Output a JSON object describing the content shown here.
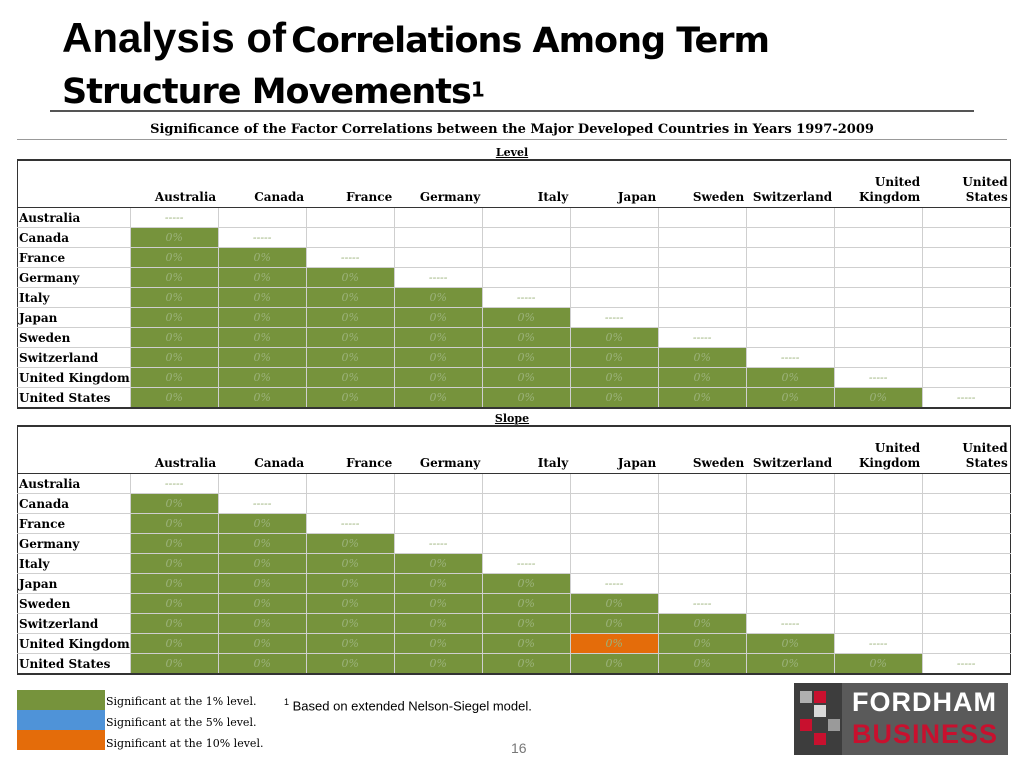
{
  "title": {
    "part1": "Analysis of",
    "part2": "Correlations Among Term",
    "part3": "Structure Movements",
    "footnote_mark": "1"
  },
  "subtitle": "Significance of the Factor Correlations between the Major Developed Countries in Years 1997-2009",
  "columns": [
    "Australia",
    "Canada",
    "France",
    "Germany",
    "Italy",
    "Japan",
    "Sweden",
    "Switzerland",
    "United Kingdom",
    "United States"
  ],
  "rows": [
    "Australia",
    "Canada",
    "France",
    "Germany",
    "Italy",
    "Japan",
    "Sweden",
    "Switzerland",
    "United Kingdom",
    "United States"
  ],
  "cell_value": "0%",
  "diagonal_value": "-----",
  "sections": [
    {
      "label": "Level",
      "significance": [
        [
          "d",
          "",
          "",
          "",
          "",
          "",
          "",
          "",
          "",
          ""
        ],
        [
          "g",
          "d",
          "",
          "",
          "",
          "",
          "",
          "",
          "",
          ""
        ],
        [
          "g",
          "g",
          "d",
          "",
          "",
          "",
          "",
          "",
          "",
          ""
        ],
        [
          "g",
          "g",
          "g",
          "d",
          "",
          "",
          "",
          "",
          "",
          ""
        ],
        [
          "g",
          "g",
          "g",
          "g",
          "d",
          "",
          "",
          "",
          "",
          ""
        ],
        [
          "g",
          "g",
          "g",
          "g",
          "g",
          "d",
          "",
          "",
          "",
          ""
        ],
        [
          "g",
          "g",
          "g",
          "g",
          "g",
          "g",
          "d",
          "",
          "",
          ""
        ],
        [
          "g",
          "g",
          "g",
          "g",
          "g",
          "g",
          "g",
          "d",
          "",
          ""
        ],
        [
          "g",
          "g",
          "g",
          "g",
          "g",
          "g",
          "g",
          "g",
          "d",
          ""
        ],
        [
          "g",
          "g",
          "g",
          "g",
          "g",
          "g",
          "g",
          "g",
          "g",
          "d"
        ]
      ]
    },
    {
      "label": "Slope",
      "significance": [
        [
          "d",
          "",
          "",
          "",
          "",
          "",
          "",
          "",
          "",
          ""
        ],
        [
          "g",
          "d",
          "",
          "",
          "",
          "",
          "",
          "",
          "",
          ""
        ],
        [
          "g",
          "g",
          "d",
          "",
          "",
          "",
          "",
          "",
          "",
          ""
        ],
        [
          "g",
          "g",
          "g",
          "d",
          "",
          "",
          "",
          "",
          "",
          ""
        ],
        [
          "g",
          "g",
          "g",
          "g",
          "d",
          "",
          "",
          "",
          "",
          ""
        ],
        [
          "g",
          "g",
          "g",
          "g",
          "g",
          "d",
          "",
          "",
          "",
          ""
        ],
        [
          "g",
          "g",
          "g",
          "g",
          "g",
          "g",
          "d",
          "",
          "",
          ""
        ],
        [
          "g",
          "g",
          "g",
          "g",
          "g",
          "g",
          "g",
          "d",
          "",
          ""
        ],
        [
          "g",
          "g",
          "g",
          "g",
          "g",
          "o",
          "g",
          "g",
          "d",
          ""
        ],
        [
          "g",
          "g",
          "g",
          "g",
          "g",
          "g",
          "g",
          "g",
          "g",
          "d"
        ]
      ]
    }
  ],
  "legend": [
    {
      "label": "Significant at the 1% level.",
      "color": "#76933c"
    },
    {
      "label": "Significant at the 5% level.",
      "color": "#4f93d8"
    },
    {
      "label": "Significant at the 10% level.",
      "color": "#e46c0a"
    }
  ],
  "footnote": {
    "mark": "1",
    "text": "Based on extended Nelson-Siegel model."
  },
  "page_number": "16",
  "logo": {
    "line1": "FORDHAM",
    "line2": "BUSINESS"
  }
}
